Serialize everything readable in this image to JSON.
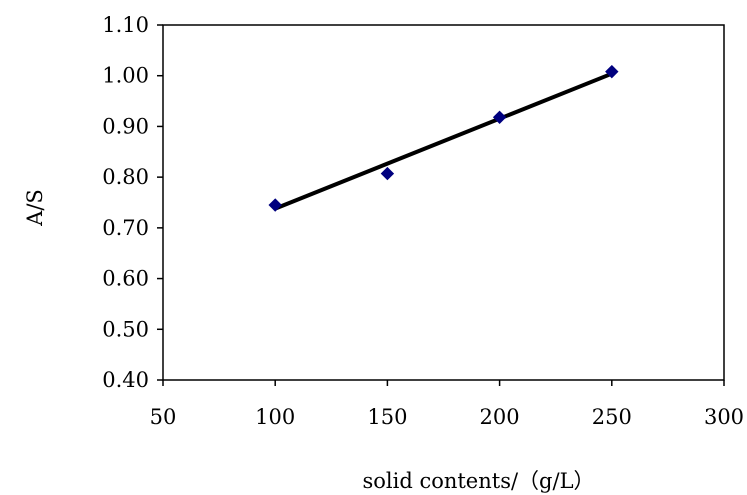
{
  "chart_data": {
    "type": "scatter",
    "title": "",
    "xlabel": "solid contents/（g/L）",
    "ylabel": "A/S",
    "xlim": [
      50,
      300
    ],
    "ylim": [
      0.4,
      1.1
    ],
    "x_ticks": [
      "50",
      "100",
      "150",
      "200",
      "250",
      "300"
    ],
    "y_ticks": [
      "1.10",
      "1.00",
      "0.90",
      "0.80",
      "0.70",
      "0.60",
      "0.50",
      "0.40"
    ],
    "grid": false,
    "legend": "none",
    "series": [
      {
        "marker": "diamond",
        "color": "#00007f",
        "points": [
          {
            "x": 100,
            "y": 0.745
          },
          {
            "x": 150,
            "y": 0.807
          },
          {
            "x": 200,
            "y": 0.918
          },
          {
            "x": 250,
            "y": 1.008
          }
        ]
      }
    ],
    "trendline": {
      "type": "linear",
      "color": "#000000",
      "from": {
        "x": 100,
        "y": 0.738
      },
      "to": {
        "x": 250,
        "y": 1.004
      }
    }
  }
}
